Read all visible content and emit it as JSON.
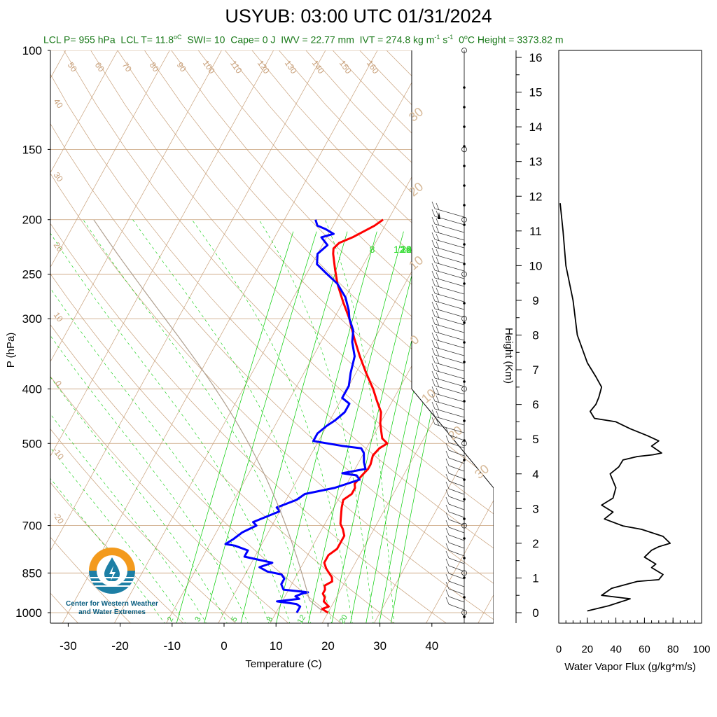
{
  "header": {
    "title": "USYUB: 03:00 UTC 01/31/2024",
    "subtitle_parts": {
      "lcl_p": "LCL P= 955 hPa",
      "lcl_t": "LCL T= 11.8",
      "deg_c": "oC",
      "swi": "SWI= 10",
      "cape": "Cape= 0 J",
      "iwv": "IWV = 22.77 mm",
      "ivt": "IVT = 274.8 kg m",
      "ivt_exp1": "-1",
      "ivt_s": " s",
      "ivt_exp2": "-1",
      "freezing": "0",
      "freezing_rest": "C Height = 3373.82 m"
    }
  },
  "logo": {
    "line1": "Center for Western Weather",
    "line2": "and Water Extremes"
  },
  "colors": {
    "temperature": "#ff0000",
    "dewpoint": "#0000ff",
    "mixing_ratio": "#00cc00",
    "adiabats": "#c8a07a",
    "flux": "#000000",
    "label_green": "#1a7a1a"
  },
  "chart_data": [
    {
      "type": "line",
      "title": "USYUB: 03:00 UTC 01/31/2024",
      "xlabel": "Temperature (C)",
      "ylabel": "P (hPa)",
      "y_scale": "log",
      "ylim": [
        1000,
        100
      ],
      "xlim": [
        -34,
        52
      ],
      "x_ticks": [
        "-30",
        "-20",
        "-10",
        "0",
        "10",
        "20",
        "30",
        "40"
      ],
      "y_ticks": [
        "100",
        "150",
        "200",
        "250",
        "300",
        "400",
        "500",
        "700",
        "850",
        "1000"
      ],
      "mixing_ratio_labels_top": [
        "8",
        "12",
        "16",
        "20",
        "24",
        "28",
        "32"
      ],
      "mixing_ratio_labels_bottom": [
        "2",
        "3",
        "5",
        "8",
        "12",
        "20"
      ],
      "dry_adiabat_labels": [
        "50",
        "60",
        "70",
        "80",
        "90",
        "100",
        "110",
        "120",
        "130",
        "140",
        "150",
        "160"
      ],
      "left_labels": [
        "40",
        "30",
        "20",
        "10",
        "0",
        "-10",
        "-20"
      ],
      "wind_scale_labels": [
        "30",
        "20",
        "10",
        "0",
        "10",
        "20",
        "30"
      ],
      "series": [
        {
          "name": "Temperature",
          "points": [
            [
              20,
              1000
            ],
            [
              18.5,
              985
            ],
            [
              19.5,
              975
            ],
            [
              18,
              955
            ],
            [
              17.8,
              940
            ],
            [
              17,
              925
            ],
            [
              17,
              910
            ],
            [
              16.5,
              895
            ],
            [
              17.5,
              880
            ],
            [
              17,
              865
            ],
            [
              16,
              850
            ],
            [
              15,
              835
            ],
            [
              14,
              815
            ],
            [
              14,
              790
            ],
            [
              15,
              770
            ],
            [
              15,
              750
            ],
            [
              15,
              730
            ],
            [
              14,
              710
            ],
            [
              13,
              695
            ],
            [
              12.5,
              680
            ],
            [
              12,
              665
            ],
            [
              11.5,
              650
            ],
            [
              11,
              630
            ],
            [
              12,
              615
            ],
            [
              12,
              600
            ],
            [
              11.5,
              590
            ],
            [
              12,
              570
            ],
            [
              12.5,
              555
            ],
            [
              12.5,
              545
            ],
            [
              12,
              525
            ],
            [
              12.5,
              510
            ],
            [
              13.5,
              500
            ],
            [
              12,
              490
            ],
            [
              11,
              475
            ],
            [
              10,
              460
            ],
            [
              9,
              440
            ],
            [
              7,
              420
            ],
            [
              5,
              400
            ],
            [
              2,
              375
            ],
            [
              -1,
              350
            ],
            [
              -4,
              325
            ],
            [
              -7,
              300
            ],
            [
              -10,
              280
            ],
            [
              -13,
              260
            ],
            [
              -15,
              245
            ],
            [
              -17,
              230
            ],
            [
              -17.5,
              225
            ],
            [
              -17,
              220
            ],
            [
              -15,
              215
            ],
            [
              -12,
              205
            ],
            [
              -11,
              200
            ]
          ]
        },
        {
          "name": "Dewpoint",
          "points": [
            [
              14,
              1000
            ],
            [
              14,
              990
            ],
            [
              14,
              975
            ],
            [
              13,
              965
            ],
            [
              9,
              955
            ],
            [
              13,
              945
            ],
            [
              12,
              935
            ],
            [
              13,
              925
            ],
            [
              14,
              920
            ],
            [
              9,
              910
            ],
            [
              8,
              890
            ],
            [
              8,
              870
            ],
            [
              7,
              855
            ],
            [
              4,
              845
            ],
            [
              2,
              830
            ],
            [
              4,
              815
            ],
            [
              -2,
              795
            ],
            [
              -2,
              775
            ],
            [
              -5,
              760
            ],
            [
              -7,
              755
            ],
            [
              -6,
              740
            ],
            [
              -5,
              720
            ],
            [
              -3,
              700
            ],
            [
              -4,
              690
            ],
            [
              -2,
              675
            ],
            [
              0,
              660
            ],
            [
              -1,
              650
            ],
            [
              2,
              630
            ],
            [
              3,
              615
            ],
            [
              8,
              600
            ],
            [
              10,
              590
            ],
            [
              12,
              580
            ],
            [
              11,
              570
            ],
            [
              8,
              565
            ],
            [
              12,
              555
            ],
            [
              11,
              540
            ],
            [
              10,
              520
            ],
            [
              9,
              510
            ],
            [
              5,
              505
            ],
            [
              -1,
              495
            ],
            [
              -1,
              480
            ],
            [
              0,
              465
            ],
            [
              1,
              455
            ],
            [
              2,
              440
            ],
            [
              2,
              425
            ],
            [
              0,
              415
            ],
            [
              0,
              395
            ],
            [
              -1,
              375
            ],
            [
              -2,
              350
            ],
            [
              -4,
              330
            ],
            [
              -5,
              315
            ],
            [
              -7,
              300
            ],
            [
              -8,
              290
            ],
            [
              -10,
              275
            ],
            [
              -13,
              260
            ],
            [
              -16,
              250
            ],
            [
              -19,
              240
            ],
            [
              -20,
              230
            ],
            [
              -19,
              222
            ],
            [
              -21,
              215
            ],
            [
              -19,
              212
            ],
            [
              -21,
              208
            ],
            [
              -23,
              205
            ],
            [
              -24,
              200
            ]
          ]
        }
      ]
    },
    {
      "type": "line",
      "xlabel": "Water Vapor Flux (g/kg*m/s)",
      "ylabel": "Height (Km)",
      "xlim": [
        0,
        100
      ],
      "ylim": [
        0,
        16
      ],
      "x_ticks": [
        "0",
        "20",
        "40",
        "60",
        "80",
        "100"
      ],
      "y_ticks": [
        "0",
        "1",
        "2",
        "3",
        "4",
        "5",
        "6",
        "7",
        "8",
        "9",
        "10",
        "11",
        "12",
        "13",
        "14",
        "15",
        "16"
      ],
      "series": [
        {
          "name": "Water Vapor Flux",
          "points": [
            [
              20,
              0.05
            ],
            [
              35,
              0.2
            ],
            [
              50,
              0.4
            ],
            [
              30,
              0.5
            ],
            [
              37,
              0.7
            ],
            [
              55,
              0.9
            ],
            [
              70,
              0.95
            ],
            [
              73,
              1.1
            ],
            [
              65,
              1.3
            ],
            [
              68,
              1.4
            ],
            [
              60,
              1.6
            ],
            [
              65,
              1.8
            ],
            [
              70,
              1.9
            ],
            [
              78,
              2.0
            ],
            [
              73,
              2.2
            ],
            [
              58,
              2.4
            ],
            [
              45,
              2.5
            ],
            [
              32,
              2.7
            ],
            [
              38,
              2.9
            ],
            [
              30,
              3.1
            ],
            [
              38,
              3.3
            ],
            [
              40,
              3.6
            ],
            [
              36,
              4.0
            ],
            [
              42,
              4.2
            ],
            [
              45,
              4.4
            ],
            [
              55,
              4.5
            ],
            [
              66,
              4.55
            ],
            [
              72,
              4.6
            ],
            [
              65,
              4.8
            ],
            [
              70,
              4.95
            ],
            [
              62,
              5.1
            ],
            [
              50,
              5.3
            ],
            [
              40,
              5.5
            ],
            [
              25,
              5.6
            ],
            [
              22,
              5.8
            ],
            [
              26,
              6.0
            ],
            [
              28,
              6.2
            ],
            [
              30,
              6.5
            ],
            [
              26,
              6.8
            ],
            [
              20,
              7.2
            ],
            [
              13,
              8.0
            ],
            [
              10,
              9.0
            ],
            [
              5,
              10.0
            ],
            [
              3,
              11.0
            ],
            [
              1,
              11.8
            ]
          ]
        }
      ]
    }
  ]
}
